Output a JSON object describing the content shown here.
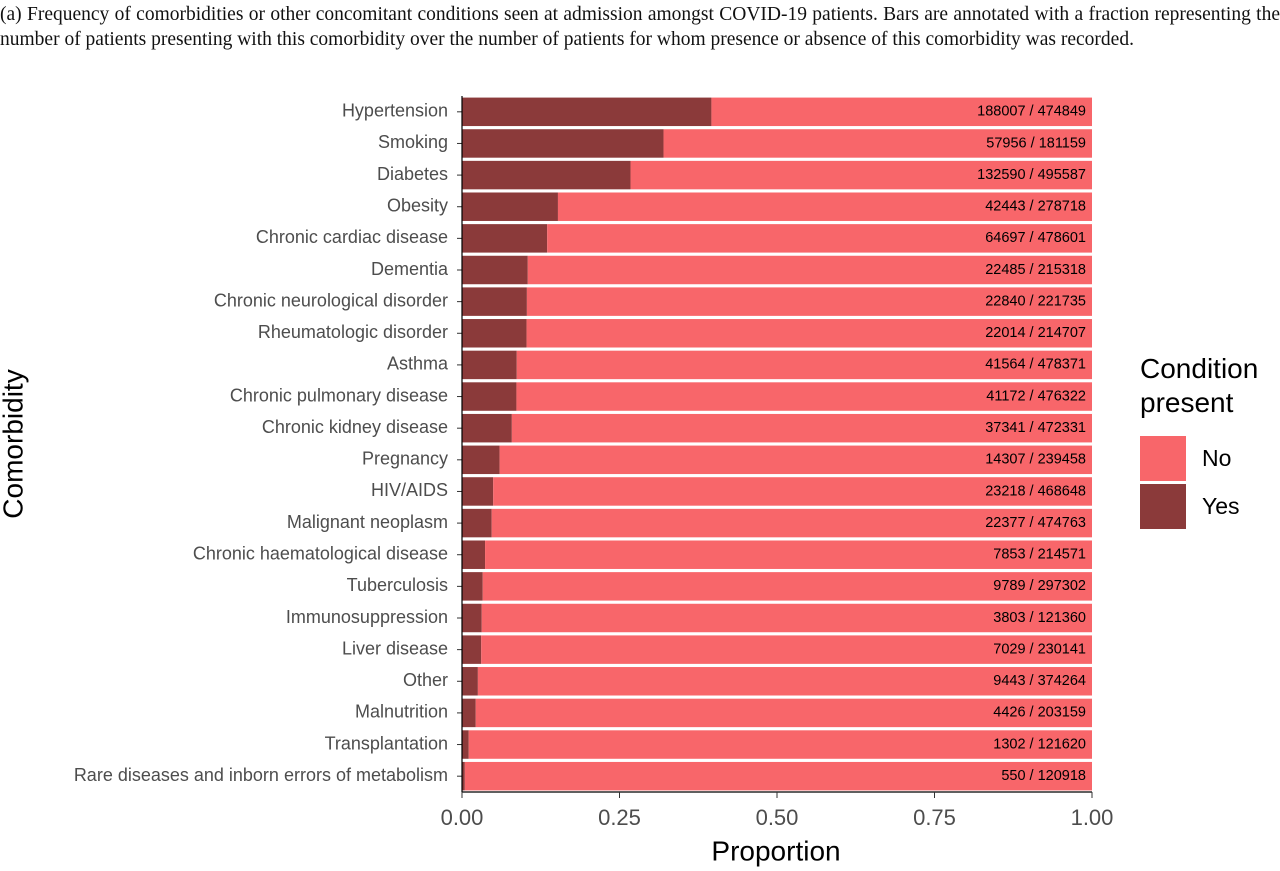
{
  "caption": "(a) Frequency of comorbidities or other concomitant conditions seen at admission amongst COVID-19 patients. Bars are annotated with a fraction representing the number of patients presenting with this comorbidity over the number of patients for whom presence or absence of this comorbidity was recorded.",
  "chart_data": {
    "type": "stacked-barh",
    "x_label": "Proportion",
    "y_label": "Comorbidity",
    "legend_title": "Condition present",
    "categories": [
      "Hypertension",
      "Smoking",
      "Diabetes",
      "Obesity",
      "Chronic cardiac disease",
      "Dementia",
      "Chronic neurological disorder",
      "Rheumatologic disorder",
      "Asthma",
      "Chronic pulmonary disease",
      "Chronic kidney disease",
      "Pregnancy",
      "HIV/AIDS",
      "Malignant neoplasm",
      "Chronic haematological disease",
      "Tuberculosis",
      "Immunosuppression",
      "Liver disease",
      "Other",
      "Malnutrition",
      "Transplantation",
      "Rare diseases and inborn errors of metabolism"
    ],
    "series": [
      {
        "name": "Yes",
        "color": "#8b3a3a",
        "values": [
          0.3959,
          0.3199,
          0.2675,
          0.1523,
          0.1352,
          0.1044,
          0.103,
          0.1025,
          0.0869,
          0.0864,
          0.0791,
          0.0597,
          0.0495,
          0.0471,
          0.0366,
          0.0329,
          0.0313,
          0.0305,
          0.0252,
          0.0218,
          0.0107,
          0.0045
        ]
      },
      {
        "name": "No",
        "color": "#f8666a",
        "values": [
          0.6041,
          0.6801,
          0.7325,
          0.8477,
          0.8648,
          0.8956,
          0.897,
          0.8975,
          0.9131,
          0.9136,
          0.9209,
          0.9403,
          0.9505,
          0.9529,
          0.9634,
          0.9671,
          0.9687,
          0.9695,
          0.9748,
          0.9782,
          0.9893,
          0.9955
        ]
      }
    ],
    "annotations": [
      "188007 / 474849",
      "57956 / 181159",
      "132590 / 495587",
      "42443 / 278718",
      "64697 / 478601",
      "22485 / 215318",
      "22840 / 221735",
      "22014 / 214707",
      "41564 / 478371",
      "41172 / 476322",
      "37341 / 472331",
      "14307 / 239458",
      "23218 / 468648",
      "22377 / 474763",
      "7853 / 214571",
      "9789 / 297302",
      "3803 / 121360",
      "7029 / 230141",
      "9443 / 374264",
      "4426 / 203159",
      "1302 / 121620",
      "550 / 120918"
    ],
    "xlim": [
      0,
      1
    ],
    "xticks": [
      {
        "value": 0,
        "label": "0.00"
      },
      {
        "value": 0.25,
        "label": "0.25"
      },
      {
        "value": 0.5,
        "label": "0.50"
      },
      {
        "value": 0.75,
        "label": "0.75"
      },
      {
        "value": 1,
        "label": "1.00"
      }
    ]
  }
}
